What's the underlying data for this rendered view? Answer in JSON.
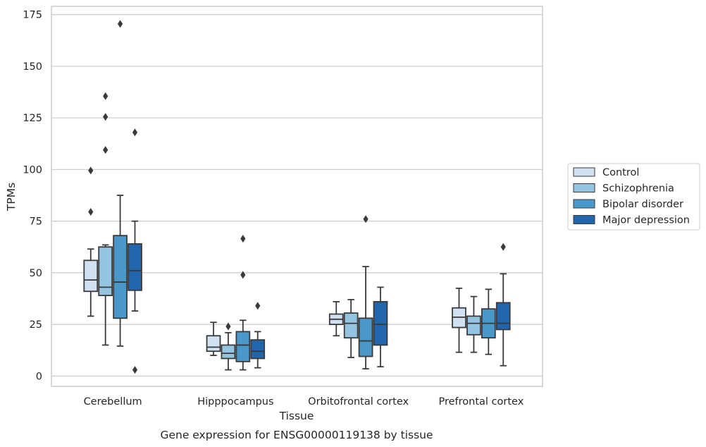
{
  "chart_data": {
    "type": "boxplot",
    "title": "",
    "xlabel": "Tissue",
    "ylabel": "TPMs",
    "caption": "Gene expression for ENSG00000119138 by tissue",
    "ylim": [
      -5,
      179
    ],
    "yticks": [
      0,
      25,
      50,
      75,
      100,
      125,
      150,
      175
    ],
    "grid": "horizontal",
    "legend_position": "right",
    "categories": [
      "Cerebellum",
      "Hipppocampus",
      "Orbitofrontal cortex",
      "Prefrontal cortex"
    ],
    "series": [
      {
        "name": "Control",
        "color": "#d0e1f2",
        "boxes": [
          {
            "whislo": 29,
            "q1": 41,
            "med": 46.5,
            "q3": 56,
            "whishi": 61.5,
            "fliers": [
              79.5,
              99.5
            ]
          },
          {
            "whislo": 10,
            "q1": 12,
            "med": 14,
            "q3": 19.5,
            "whishi": 26,
            "fliers": []
          },
          {
            "whislo": 19.5,
            "q1": 25,
            "med": 27.5,
            "q3": 30,
            "whishi": 36,
            "fliers": []
          },
          {
            "whislo": 11.5,
            "q1": 23.5,
            "med": 28.5,
            "q3": 33,
            "whishi": 42.5,
            "fliers": []
          }
        ]
      },
      {
        "name": "Schizophrenia",
        "color": "#94c4df",
        "boxes": [
          {
            "whislo": 15,
            "q1": 39,
            "med": 43,
            "q3": 62.5,
            "whishi": 63.5,
            "fliers": [
              109.5,
              125.5,
              135.5
            ]
          },
          {
            "whislo": 3,
            "q1": 8.5,
            "med": 11,
            "q3": 15,
            "whishi": 21,
            "fliers": [
              24
            ]
          },
          {
            "whislo": 9,
            "q1": 18.5,
            "med": 25.5,
            "q3": 30.5,
            "whishi": 37,
            "fliers": []
          },
          {
            "whislo": 11.5,
            "q1": 20,
            "med": 25.5,
            "q3": 29,
            "whishi": 38.5,
            "fliers": []
          }
        ]
      },
      {
        "name": "Bipolar disorder",
        "color": "#4a98c9",
        "boxes": [
          {
            "whislo": 14.5,
            "q1": 28,
            "med": 45.5,
            "q3": 68,
            "whishi": 87.5,
            "fliers": [
              170.5
            ]
          },
          {
            "whislo": 3,
            "q1": 7,
            "med": 15,
            "q3": 21.5,
            "whishi": 27,
            "fliers": [
              49,
              66.5
            ]
          },
          {
            "whislo": 3.5,
            "q1": 9.5,
            "med": 17,
            "q3": 28,
            "whishi": 53,
            "fliers": [
              76
            ]
          },
          {
            "whislo": 10.5,
            "q1": 18.5,
            "med": 25.5,
            "q3": 32.5,
            "whishi": 42,
            "fliers": []
          }
        ]
      },
      {
        "name": "Major depression",
        "color": "#2166ac",
        "boxes": [
          {
            "whislo": 31.5,
            "q1": 41.5,
            "med": 51,
            "q3": 64,
            "whishi": 75,
            "fliers": [
              3,
              118
            ]
          },
          {
            "whislo": 4,
            "q1": 8.5,
            "med": 12,
            "q3": 17.5,
            "whishi": 21.5,
            "fliers": [
              34
            ]
          },
          {
            "whislo": 4.5,
            "q1": 15,
            "med": 25,
            "q3": 36,
            "whishi": 43,
            "fliers": []
          },
          {
            "whislo": 5,
            "q1": 22.5,
            "med": 25.5,
            "q3": 35.5,
            "whishi": 49.5,
            "fliers": [
              62.5
            ]
          }
        ]
      }
    ]
  }
}
